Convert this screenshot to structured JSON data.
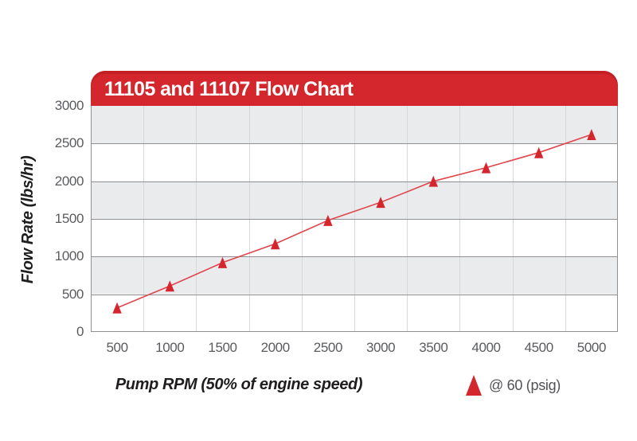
{
  "chart_data": {
    "type": "line",
    "title": "11105 and 11107 Flow Chart",
    "xlabel": "Pump RPM (50% of engine speed)",
    "ylabel": "Flow Rate (lbs/hr)",
    "x": [
      500,
      1000,
      1500,
      2000,
      2500,
      3000,
      3500,
      4000,
      4500,
      5000
    ],
    "series": [
      {
        "name": "@ 60 (psig)",
        "marker": "triangle",
        "values": [
          320,
          610,
          920,
          1170,
          1480,
          1720,
          2000,
          2180,
          2380,
          2620
        ]
      }
    ],
    "ylim": [
      0,
      3000
    ],
    "ytick_step": 500,
    "yticks": [
      0,
      500,
      1000,
      1500,
      2000,
      2500,
      3000
    ],
    "grid": "horizontal major lines every 500; light vertical lines at category boundaries; alternating gray/white horizontal bands",
    "legend_position": "bottom-right",
    "colors": {
      "header_red": "#d4262d",
      "marker_red": "#d6262d",
      "line_red": "#e0464b",
      "band_gray": "#eaebed",
      "band_white": "#ffffff",
      "major_gridline": "#909093",
      "minor_gridline": "#d7d8da",
      "tick_text": "#5a5b5e",
      "axis_title_text": "#1f1d1e",
      "title_text": "#ffffff"
    }
  }
}
